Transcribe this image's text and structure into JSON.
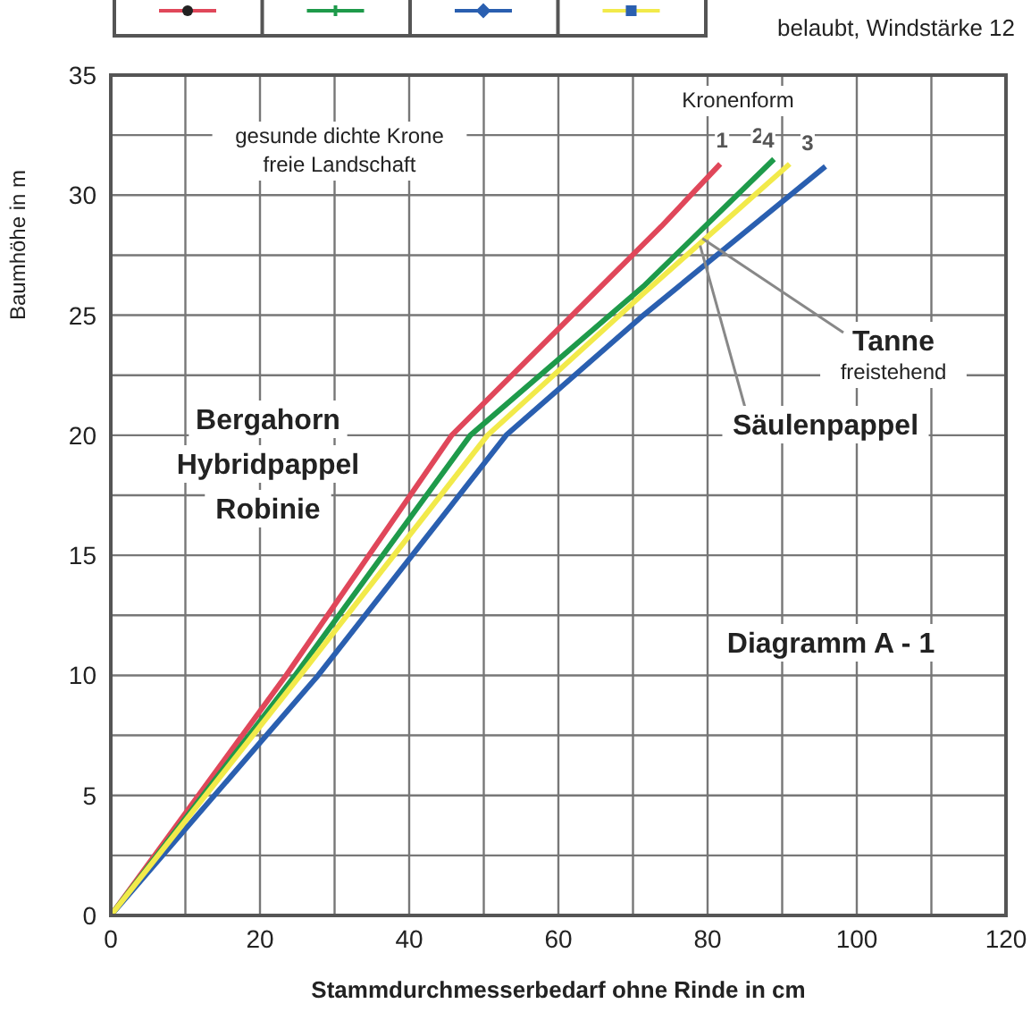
{
  "chart_data": {
    "type": "line",
    "xlabel": "Stammdurchmesserbedarf ohne Rinde in cm",
    "ylabel": "Baumhöhe in m",
    "xlim": [
      0,
      120
    ],
    "ylim": [
      0,
      35
    ],
    "xticks": [
      0,
      {
        "value": 10,
        "label": null
      },
      20,
      {
        "value": 30,
        "label": null
      },
      40,
      {
        "value": 50,
        "label": null
      },
      60,
      {
        "value": 70,
        "label": null
      },
      80,
      {
        "value": 90,
        "label": null
      },
      100,
      {
        "value": 110,
        "label": null
      },
      120
    ],
    "yticks": [
      0,
      {
        "value": 2.5,
        "label": null
      },
      5,
      {
        "value": 7.5,
        "label": null
      },
      10,
      {
        "value": 12.5,
        "label": null
      },
      15,
      {
        "value": 17.5,
        "label": null
      },
      20,
      {
        "value": 22.5,
        "label": null
      },
      25,
      {
        "value": 27.5,
        "label": null
      },
      30,
      {
        "value": 32.5,
        "label": null
      },
      35
    ],
    "grid": true,
    "marker": "none",
    "line_style": "solid",
    "series": [
      {
        "color": "#e0475a",
        "x": [
          0,
          23.5,
          45.7,
          73.8,
          81.7
        ],
        "values": [
          0,
          10,
          20,
          28.7,
          31.3
        ]
      },
      {
        "color": "#1e9a4a",
        "x": [
          0,
          24.7,
          48.2,
          71.4,
          88.9
        ],
        "values": [
          0,
          10,
          20,
          26.2,
          31.5
        ]
      },
      {
        "color": "#2a5fb0",
        "x": [
          0,
          27.8,
          53,
          71.4,
          95.8
        ],
        "values": [
          0,
          10,
          20,
          25,
          31.2
        ]
      },
      {
        "color": "#f2ea4a",
        "x": [
          0,
          25.4,
          50.5,
          71.4,
          91
        ],
        "values": [
          0,
          10,
          20,
          25.9,
          31.3
        ]
      }
    ],
    "annotations": [
      "belaubt, Windstärke 12",
      "Kronenform",
      {
        "text": "1",
        "x": 81.7,
        "y": 31.3
      },
      {
        "text": "2",
        "x": 88.9,
        "y": 31.5
      },
      {
        "text": "4",
        "x": 91,
        "y": 31.3
      },
      {
        "text": "3",
        "x": 95.8,
        "y": 31.2
      },
      "gesunde dichte Krone",
      "freie Landschaft",
      "Bergahorn",
      "Hybridpappel",
      "Robinie",
      {
        "text": "Tanne",
        "x": 79.3,
        "y": 28.2
      },
      "freistehend",
      {
        "text": "Säulenpappel",
        "x": 79,
        "y": 27.9
      },
      "Diagramm A - 1"
    ]
  }
}
